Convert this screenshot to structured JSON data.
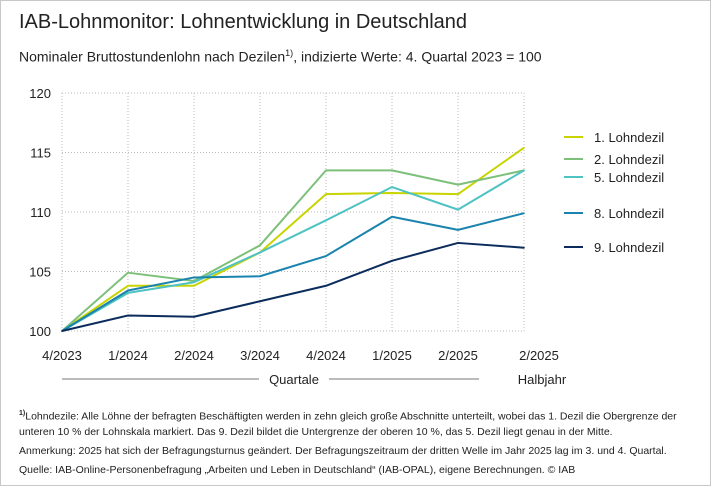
{
  "title": "IAB-Lohnmonitor: Lohnentwicklung in Deutschland",
  "subtitle_pre": "Nominaler Bruttostundenlohn nach Dezilen",
  "subtitle_sup": "1)",
  "subtitle_post": ", indizierte Werte: 4. Quartal 2023 = 100",
  "chart_data": {
    "type": "line",
    "categories": [
      "4/2023",
      "1/2024",
      "2/2024",
      "3/2024",
      "4/2024",
      "1/2025",
      "2/2025",
      "2/2025"
    ],
    "category_groups": [
      {
        "label": "Quartale",
        "from": 0,
        "to": 6
      },
      {
        "label": "Halbjahr",
        "from": 7,
        "to": 7
      }
    ],
    "ylim": [
      100,
      120
    ],
    "yticks": [
      100,
      105,
      110,
      115,
      120
    ],
    "grid": true,
    "legend_placement": "right",
    "series": [
      {
        "name": "1. Lohndezil",
        "color": "#c8d400",
        "values": [
          100,
          103.8,
          103.8,
          106.6,
          111.5,
          111.6,
          111.5,
          115.4
        ]
      },
      {
        "name": "2. Lohndezil",
        "color": "#7dc07a",
        "values": [
          100,
          104.9,
          104.2,
          107.2,
          113.5,
          113.5,
          112.3,
          113.5
        ]
      },
      {
        "name": "5. Lohndezil",
        "color": "#4fc2c3",
        "values": [
          100,
          103.2,
          104.1,
          106.6,
          109.3,
          112.1,
          110.2,
          113.5
        ]
      },
      {
        "name": "8. Lohndezil",
        "color": "#1a84ae",
        "values": [
          100,
          103.4,
          104.5,
          104.6,
          106.3,
          109.6,
          108.5,
          109.9
        ]
      },
      {
        "name": "9. Lohndezil",
        "color": "#0b2c5c",
        "values": [
          100,
          101.3,
          101.2,
          102.5,
          103.8,
          105.9,
          107.4,
          107.0
        ]
      }
    ]
  },
  "notes": {
    "footnote_mark": "1)",
    "footnote": "Lohndezile: Alle Löhne der befragten Beschäftigten werden in zehn gleich große Abschnitte unterteilt, wobei das 1. Dezil die Obergrenze der unteren 10 % der Lohnskala markiert. Das 9. Dezil bildet die Untergrenze der oberen 10 %, das 5. Dezil liegt genau in der Mitte.",
    "remark": "Anmerkung: 2025 hat sich der Befragungsturnus geändert. Der Befragungszeitraum der dritten Welle im Jahr  2025 lag im 3. und 4. Quartal.",
    "source": "Quelle: IAB-Online-Personenbefragung „Arbeiten und Leben in Deutschland“ (IAB-OPAL), eigene Berechnungen. © IAB"
  }
}
